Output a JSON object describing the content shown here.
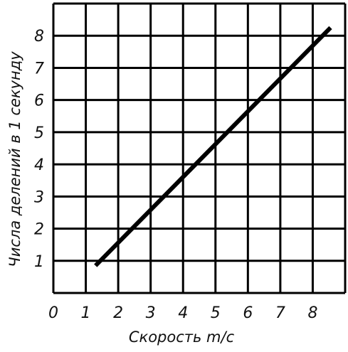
{
  "chart_data": {
    "type": "line",
    "title": "",
    "xlabel": "Скорость m/c",
    "ylabel": "Числа делений в 1 секунду",
    "xlim": [
      0,
      9
    ],
    "ylim": [
      0,
      9
    ],
    "x_ticks": [
      "0",
      "1",
      "2",
      "3",
      "4",
      "5",
      "6",
      "7",
      "8"
    ],
    "y_ticks": [
      "1",
      "2",
      "3",
      "4",
      "5",
      "6",
      "7",
      "8"
    ],
    "grid": true,
    "legend": "none",
    "series": [
      {
        "points": [
          {
            "x": 1.3,
            "y": 0.85
          },
          {
            "x": 8.55,
            "y": 8.25
          }
        ],
        "color": "#000000"
      }
    ],
    "colors": {
      "line": "#000000",
      "grid": "#000000",
      "text": "#111111"
    }
  }
}
